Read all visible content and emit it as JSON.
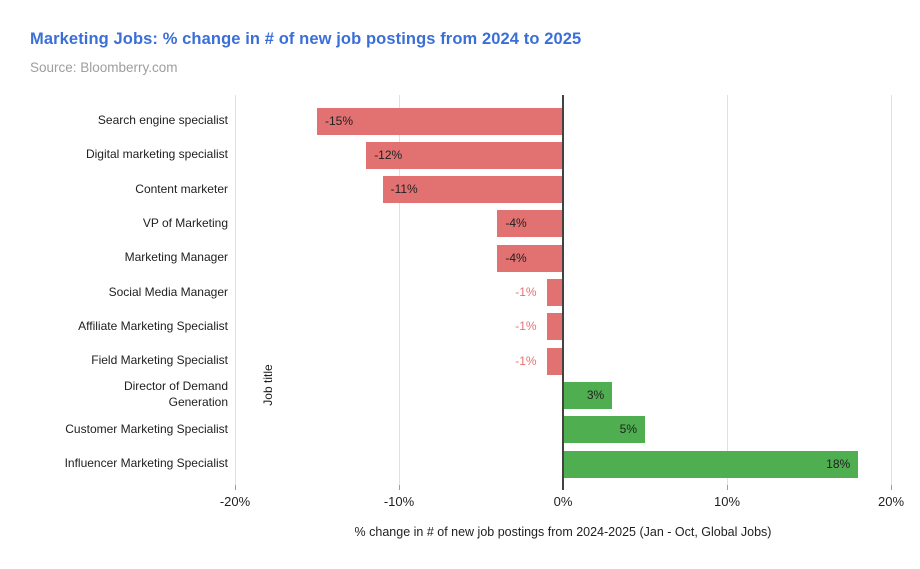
{
  "header": {
    "title": "Marketing Jobs: % change in # of new job postings from 2024 to 2025",
    "source": "Source: Bloomberry.com"
  },
  "colors": {
    "title": "#3b6fd8",
    "source": "#9e9e9e",
    "negative_bar": "#e27272",
    "positive_bar": "#4fae50",
    "inside_label": "#212121",
    "outside_label": "#e57373",
    "gridline": "#e0e0e0",
    "zero_axis": "#424242",
    "tick_stub": "#9e9e9e"
  },
  "chart_data": {
    "type": "bar",
    "orientation": "horizontal",
    "title": "Marketing Jobs: % change in # of new job postings from 2024 to 2025",
    "subtitle": "Source: Bloomberry.com",
    "categories": [
      "Search engine specialist",
      "Digital marketing specialist",
      "Content marketer",
      "VP of Marketing",
      "Marketing Manager",
      "Social Media Manager",
      "Affiliate Marketing Specialist",
      "Field Marketing Specialist",
      "Director of Demand\nGeneration",
      "Customer Marketing Specialist",
      "Influencer Marketing Specialist"
    ],
    "values": [
      -15,
      -12,
      -11,
      -4,
      -4,
      -1,
      -1,
      -1,
      3,
      5,
      18
    ],
    "point_labels": [
      "-15%",
      "-12%",
      "-11%",
      "-4%",
      "-4%",
      "-1%",
      "-1%",
      "-1%",
      "3%",
      "5%",
      "18%"
    ],
    "xlabel": "% change in # of new job postings from 2024-2025 (Jan - Oct, Global Jobs)",
    "ylabel": "Job title",
    "xlim": [
      -20,
      20
    ],
    "xticks": {
      "values": [
        -20,
        -10,
        0,
        10,
        20
      ],
      "labels": [
        "-20%",
        "-10%",
        "0%",
        "10%",
        "20%"
      ]
    },
    "grid": true,
    "legend": "none"
  }
}
